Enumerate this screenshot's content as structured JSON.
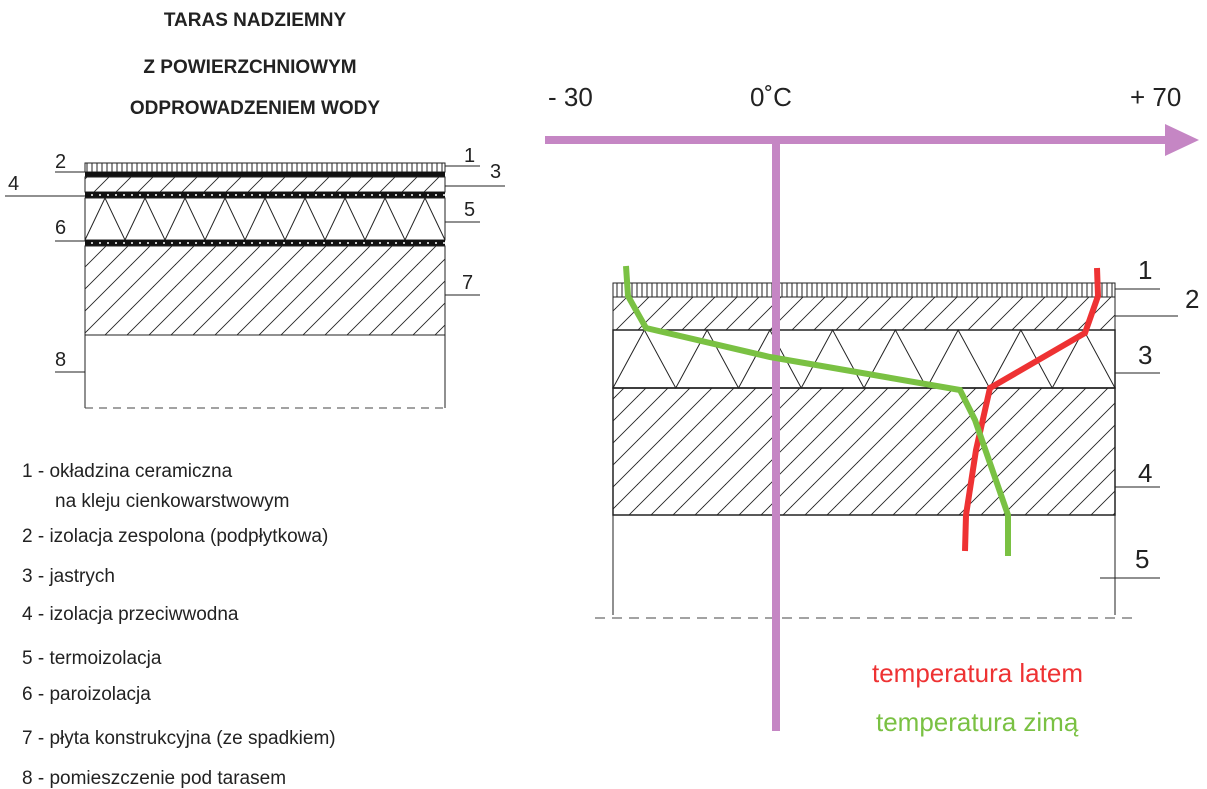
{
  "title": {
    "lines": [
      "TARAS NADZIEMNY",
      "Z POWIERZCHNIOWYM",
      "ODPROWADZENIEM WODY"
    ]
  },
  "left_diagram": {
    "labels": [
      "1",
      "2",
      "3",
      "4",
      "5",
      "6",
      "7",
      "8"
    ]
  },
  "legend": {
    "items": [
      [
        "1 - okładzina ceramiczna",
        "na kleju cienkowarstwowym"
      ],
      [
        "2 - izolacja zespolona (podpłytkowa)"
      ],
      [
        "3 - jastrych"
      ],
      [
        "4 - izolacja przeciwwodna"
      ],
      [
        "5 - termoizolacja"
      ],
      [
        "6 - paroizolacja"
      ],
      [
        "7 - płyta konstrukcyjna (ze spadkiem)"
      ],
      [
        "8 - pomieszczenie pod tarasem"
      ]
    ]
  },
  "right_diagram": {
    "axis_labels": [
      "- 30",
      "0˚C",
      "+ 70"
    ],
    "labels": [
      "1",
      "2",
      "3",
      "4",
      "5"
    ],
    "curves": [
      {
        "name": "temperatura latem",
        "color": "#ee3233"
      },
      {
        "name": "temperatura zimą",
        "color": "#7ac143"
      }
    ]
  }
}
